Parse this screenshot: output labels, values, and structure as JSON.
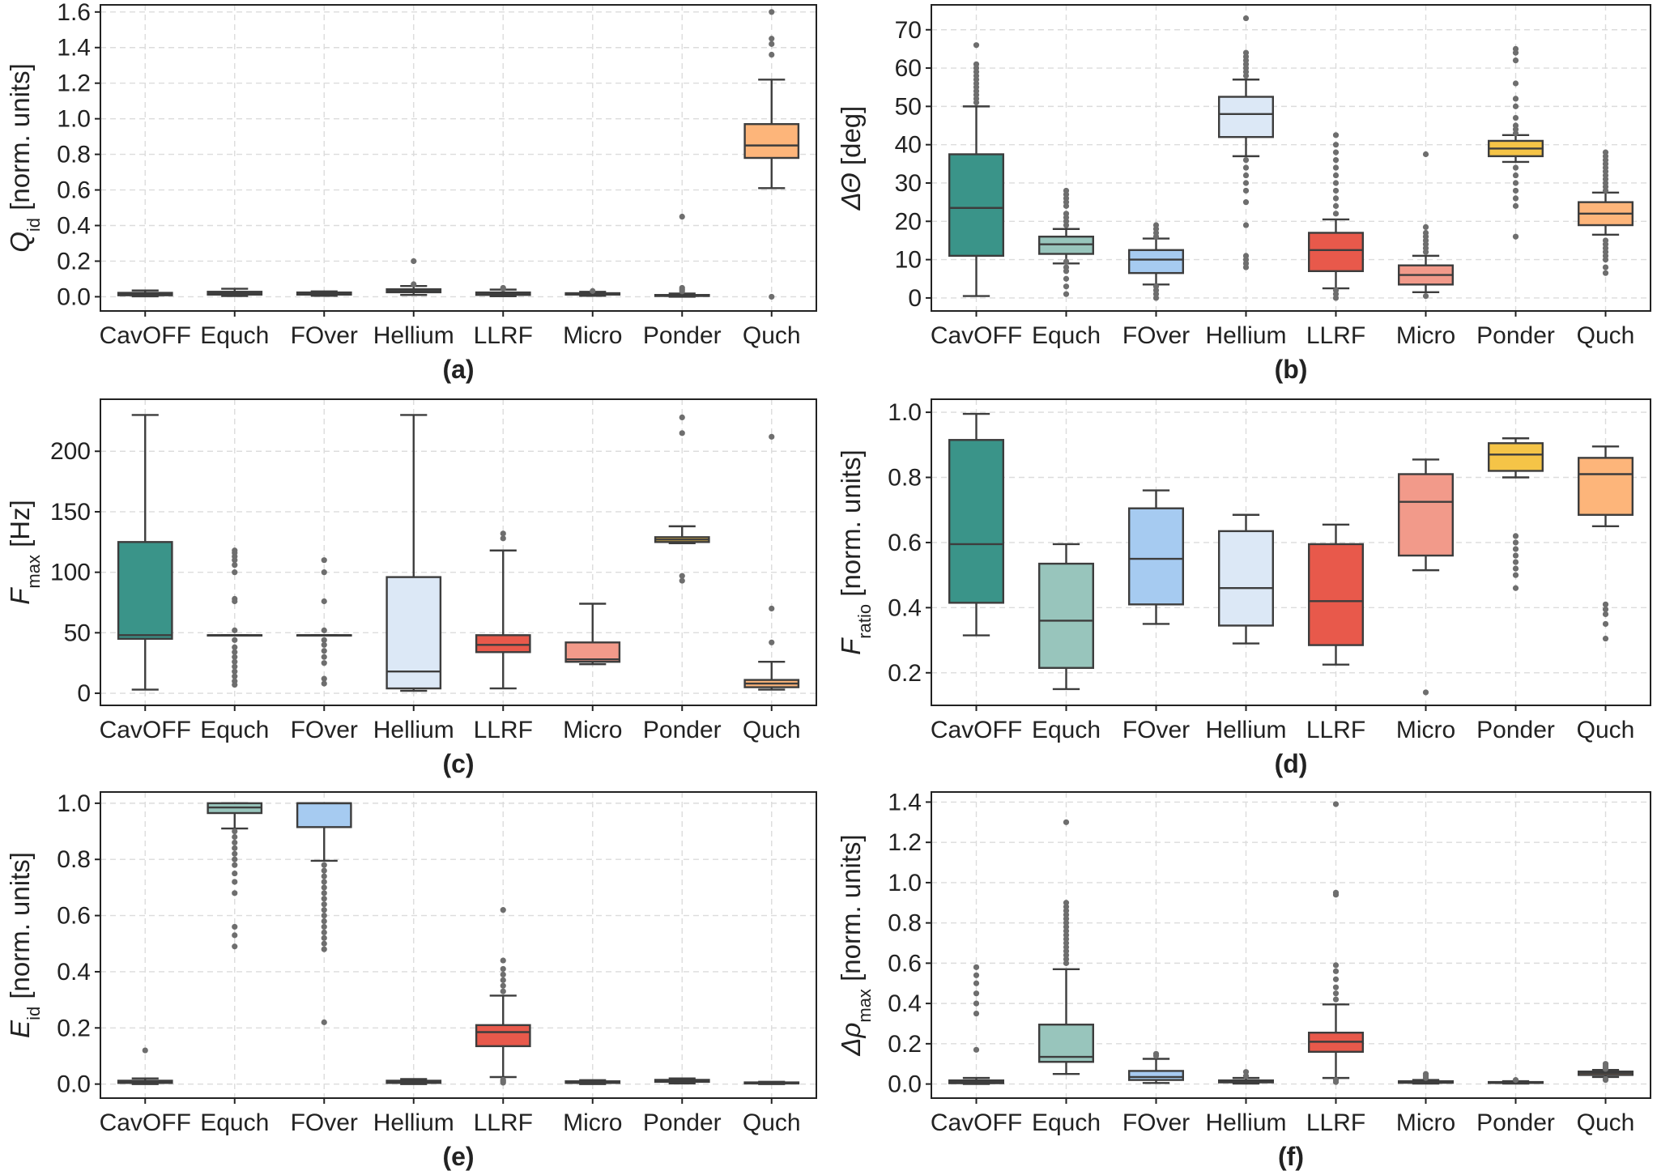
{
  "categories": [
    "CavOFF",
    "Equch",
    "FOver",
    "Hellium",
    "LLRF",
    "Micro",
    "Ponder",
    "Quch"
  ],
  "colors": [
    "#3a9489",
    "#98c5bc",
    "#a6cbf1",
    "#dce8f6",
    "#e8594b",
    "#f29a8a",
    "#f5c447",
    "#fdb57a"
  ],
  "chart_data": [
    {
      "type": "box",
      "panel_label": "(a)",
      "ylabel": {
        "main": "Q",
        "sub": "id",
        "suffix": " [norm. units]"
      },
      "ylim": [
        -0.08,
        1.64
      ],
      "yticks": [
        0.0,
        0.2,
        0.4,
        0.6,
        0.8,
        1.0,
        1.2,
        1.4,
        1.6
      ],
      "tick_decimals": 1,
      "grid": true,
      "boxes": [
        {
          "category": "CavOFF",
          "whislo": 0.002,
          "q1": 0.008,
          "median": 0.014,
          "q3": 0.022,
          "whishi": 0.035,
          "fliers": []
        },
        {
          "category": "Equch",
          "whislo": 0.004,
          "q1": 0.012,
          "median": 0.019,
          "q3": 0.028,
          "whishi": 0.045,
          "fliers": []
        },
        {
          "category": "FOver",
          "whislo": 0.005,
          "q1": 0.012,
          "median": 0.018,
          "q3": 0.024,
          "whishi": 0.03,
          "fliers": []
        },
        {
          "category": "Hellium",
          "whislo": 0.01,
          "q1": 0.025,
          "median": 0.032,
          "q3": 0.042,
          "whishi": 0.06,
          "fliers": [
            0.07,
            0.2
          ]
        },
        {
          "category": "LLRF",
          "whislo": 0.003,
          "q1": 0.01,
          "median": 0.016,
          "q3": 0.024,
          "whishi": 0.04,
          "fliers": [
            0.045,
            0.05
          ]
        },
        {
          "category": "Micro",
          "whislo": 0.005,
          "q1": 0.012,
          "median": 0.016,
          "q3": 0.02,
          "whishi": 0.028,
          "fliers": [
            0.032
          ]
        },
        {
          "category": "Ponder",
          "whislo": 0.0,
          "q1": 0.004,
          "median": 0.007,
          "q3": 0.01,
          "whishi": 0.018,
          "fliers": [
            0.03,
            0.04,
            0.05,
            0.45
          ]
        },
        {
          "category": "Quch",
          "whislo": 0.61,
          "q1": 0.78,
          "median": 0.85,
          "q3": 0.97,
          "whishi": 1.22,
          "fliers": [
            1.36,
            1.42,
            1.45,
            1.6,
            0.0
          ]
        }
      ]
    },
    {
      "type": "box",
      "panel_label": "(b)",
      "ylabel": {
        "main": "ΔΘ",
        "sub": "",
        "suffix": " [deg]"
      },
      "ylim": [
        -3.4,
        76.5
      ],
      "yticks": [
        0,
        10,
        20,
        30,
        40,
        50,
        60,
        70
      ],
      "tick_decimals": 0,
      "grid": true,
      "boxes": [
        {
          "category": "CavOFF",
          "whislo": 0.5,
          "q1": 11.0,
          "median": 23.5,
          "q3": 37.5,
          "whishi": 50.0,
          "fliers": [
            51,
            52,
            53,
            54,
            55,
            56,
            57,
            58,
            59,
            60,
            61,
            66
          ]
        },
        {
          "category": "Equch",
          "whislo": 9.0,
          "q1": 11.5,
          "median": 14.0,
          "q3": 16.0,
          "whishi": 18.0,
          "fliers": [
            1,
            3,
            5,
            7,
            8,
            9.5,
            19,
            20,
            21,
            22,
            24,
            25,
            26,
            27,
            28
          ]
        },
        {
          "category": "FOver",
          "whislo": 3.5,
          "q1": 6.5,
          "median": 10.0,
          "q3": 12.5,
          "whishi": 15.5,
          "fliers": [
            0,
            1,
            2,
            3,
            16,
            17,
            18,
            19
          ]
        },
        {
          "category": "Hellium",
          "whislo": 37.0,
          "q1": 42.0,
          "median": 48.0,
          "q3": 52.5,
          "whishi": 57.0,
          "fliers": [
            8,
            9,
            10,
            11,
            19,
            25,
            28,
            30,
            32,
            34,
            36,
            58,
            59,
            60,
            61,
            62,
            63,
            64,
            73
          ]
        },
        {
          "category": "LLRF",
          "whislo": 2.5,
          "q1": 7.0,
          "median": 12.5,
          "q3": 17.0,
          "whishi": 20.5,
          "fliers": [
            0,
            1,
            2,
            22,
            24,
            26,
            28,
            30,
            32,
            34,
            36,
            38,
            40,
            42.5
          ]
        },
        {
          "category": "Micro",
          "whislo": 1.5,
          "q1": 3.5,
          "median": 6.0,
          "q3": 8.5,
          "whishi": 11.0,
          "fliers": [
            0.5,
            12,
            13,
            14,
            15,
            16,
            17,
            18.5,
            37.5
          ]
        },
        {
          "category": "Ponder",
          "whislo": 35.5,
          "q1": 37.0,
          "median": 39.0,
          "q3": 41.0,
          "whishi": 42.5,
          "fliers": [
            16,
            24,
            26,
            28,
            30,
            32,
            34,
            43,
            44,
            45,
            47,
            50,
            52,
            56,
            62,
            64,
            65
          ]
        },
        {
          "category": "Quch",
          "whislo": 16.5,
          "q1": 19.0,
          "median": 22.0,
          "q3": 25.0,
          "whishi": 27.5,
          "fliers": [
            6.5,
            8,
            10,
            11,
            12,
            13,
            14,
            15,
            28,
            29,
            30,
            31,
            32,
            33,
            34,
            35,
            36,
            37,
            38
          ]
        }
      ]
    },
    {
      "type": "box",
      "panel_label": "(c)",
      "ylabel": {
        "main": "F",
        "sub": "max",
        "suffix": " [Hz]"
      },
      "ylim": [
        -10,
        243
      ],
      "yticks": [
        0,
        50,
        100,
        150,
        200
      ],
      "tick_decimals": 0,
      "grid": true,
      "boxes": [
        {
          "category": "CavOFF",
          "whislo": 3,
          "q1": 45,
          "median": 48,
          "q3": 125,
          "whishi": 230,
          "fliers": []
        },
        {
          "category": "Equch",
          "whislo": 48,
          "q1": 48,
          "median": 48,
          "q3": 48,
          "whishi": 48,
          "fliers": [
            7,
            10,
            14,
            18,
            22,
            26,
            30,
            34,
            38,
            44,
            52,
            76,
            78,
            100,
            106,
            110,
            113,
            116,
            118
          ]
        },
        {
          "category": "FOver",
          "whislo": 48,
          "q1": 48,
          "median": 48,
          "q3": 48,
          "whishi": 48,
          "fliers": [
            8,
            12,
            25,
            30,
            35,
            40,
            44,
            52,
            76,
            100,
            110
          ]
        },
        {
          "category": "Hellium",
          "whislo": 2,
          "q1": 4,
          "median": 18,
          "q3": 96,
          "whishi": 230,
          "fliers": []
        },
        {
          "category": "LLRF",
          "whislo": 4,
          "q1": 34,
          "median": 40,
          "q3": 48,
          "whishi": 118,
          "fliers": [
            128,
            132
          ]
        },
        {
          "category": "Micro",
          "whislo": 24,
          "q1": 26,
          "median": 28,
          "q3": 42,
          "whishi": 74,
          "fliers": []
        },
        {
          "category": "Ponder",
          "whislo": 124,
          "q1": 125,
          "median": 127,
          "q3": 129,
          "whishi": 138,
          "fliers": [
            93,
            97,
            215,
            228
          ]
        },
        {
          "category": "Quch",
          "whislo": 3,
          "q1": 5,
          "median": 8,
          "q3": 11,
          "whishi": 26,
          "fliers": [
            42,
            70,
            212
          ]
        }
      ]
    },
    {
      "type": "box",
      "panel_label": "(d)",
      "ylabel": {
        "main": "F",
        "sub": "ratio",
        "suffix": " [norm. units]"
      },
      "ylim": [
        0.1,
        1.04
      ],
      "yticks": [
        0.2,
        0.4,
        0.6,
        0.8,
        1.0
      ],
      "tick_decimals": 1,
      "grid": true,
      "boxes": [
        {
          "category": "CavOFF",
          "whislo": 0.315,
          "q1": 0.415,
          "median": 0.595,
          "q3": 0.915,
          "whishi": 0.995,
          "fliers": []
        },
        {
          "category": "Equch",
          "whislo": 0.15,
          "q1": 0.215,
          "median": 0.36,
          "q3": 0.535,
          "whishi": 0.595,
          "fliers": []
        },
        {
          "category": "FOver",
          "whislo": 0.35,
          "q1": 0.41,
          "median": 0.55,
          "q3": 0.705,
          "whishi": 0.76,
          "fliers": []
        },
        {
          "category": "Hellium",
          "whislo": 0.29,
          "q1": 0.345,
          "median": 0.46,
          "q3": 0.635,
          "whishi": 0.685,
          "fliers": []
        },
        {
          "category": "LLRF",
          "whislo": 0.225,
          "q1": 0.285,
          "median": 0.42,
          "q3": 0.595,
          "whishi": 0.655,
          "fliers": []
        },
        {
          "category": "Micro",
          "whislo": 0.515,
          "q1": 0.56,
          "median": 0.725,
          "q3": 0.81,
          "whishi": 0.855,
          "fliers": [
            0.14
          ]
        },
        {
          "category": "Ponder",
          "whislo": 0.8,
          "q1": 0.82,
          "median": 0.87,
          "q3": 0.905,
          "whishi": 0.92,
          "fliers": [
            0.46,
            0.5,
            0.52,
            0.54,
            0.56,
            0.58,
            0.6,
            0.62
          ]
        },
        {
          "category": "Quch",
          "whislo": 0.65,
          "q1": 0.685,
          "median": 0.81,
          "q3": 0.86,
          "whishi": 0.895,
          "fliers": [
            0.305,
            0.35,
            0.38,
            0.395,
            0.41
          ]
        }
      ]
    },
    {
      "type": "box",
      "panel_label": "(e)",
      "ylabel": {
        "main": "E",
        "sub": "id",
        "suffix": " [norm. units]"
      },
      "ylim": [
        -0.05,
        1.04
      ],
      "yticks": [
        0.0,
        0.2,
        0.4,
        0.6,
        0.8,
        1.0
      ],
      "tick_decimals": 1,
      "grid": true,
      "boxes": [
        {
          "category": "CavOFF",
          "whislo": 0.0,
          "q1": 0.004,
          "median": 0.008,
          "q3": 0.012,
          "whishi": 0.02,
          "fliers": [
            0.12
          ]
        },
        {
          "category": "Equch",
          "whislo": 0.91,
          "q1": 0.965,
          "median": 0.985,
          "q3": 1.0,
          "whishi": 1.0,
          "fliers": [
            0.49,
            0.53,
            0.56,
            0.68,
            0.72,
            0.75,
            0.78,
            0.8,
            0.82,
            0.84,
            0.86,
            0.88,
            0.9
          ]
        },
        {
          "category": "FOver",
          "whislo": 0.795,
          "q1": 0.915,
          "median": 1.0,
          "q3": 1.0,
          "whishi": 1.0,
          "fliers": [
            0.22,
            0.48,
            0.5,
            0.52,
            0.54,
            0.56,
            0.58,
            0.6,
            0.62,
            0.64,
            0.66,
            0.68,
            0.7,
            0.72,
            0.74,
            0.76,
            0.78
          ]
        },
        {
          "category": "Hellium",
          "whislo": 0.0,
          "q1": 0.004,
          "median": 0.008,
          "q3": 0.012,
          "whishi": 0.018,
          "fliers": []
        },
        {
          "category": "LLRF",
          "whislo": 0.025,
          "q1": 0.135,
          "median": 0.185,
          "q3": 0.21,
          "whishi": 0.315,
          "fliers": [
            0.005,
            0.01,
            0.015,
            0.33,
            0.35,
            0.37,
            0.39,
            0.41,
            0.44,
            0.62
          ]
        },
        {
          "category": "Micro",
          "whislo": 0.0,
          "q1": 0.004,
          "median": 0.007,
          "q3": 0.01,
          "whishi": 0.014,
          "fliers": []
        },
        {
          "category": "Ponder",
          "whislo": 0.002,
          "q1": 0.008,
          "median": 0.012,
          "q3": 0.015,
          "whishi": 0.02,
          "fliers": []
        },
        {
          "category": "Quch",
          "whislo": 0.0,
          "q1": 0.002,
          "median": 0.004,
          "q3": 0.006,
          "whishi": 0.008,
          "fliers": []
        }
      ]
    },
    {
      "type": "box",
      "panel_label": "(f)",
      "ylabel": {
        "main": "Δρ",
        "sub": "max",
        "suffix": " [norm. units]"
      },
      "ylim": [
        -0.07,
        1.45
      ],
      "yticks": [
        0.0,
        0.2,
        0.4,
        0.6,
        0.8,
        1.0,
        1.2,
        1.4
      ],
      "tick_decimals": 1,
      "grid": true,
      "boxes": [
        {
          "category": "CavOFF",
          "whislo": 0.0,
          "q1": 0.004,
          "median": 0.01,
          "q3": 0.018,
          "whishi": 0.03,
          "fliers": [
            0.17,
            0.35,
            0.4,
            0.45,
            0.5,
            0.54,
            0.58
          ]
        },
        {
          "category": "Equch",
          "whislo": 0.05,
          "q1": 0.11,
          "median": 0.135,
          "q3": 0.295,
          "whishi": 0.57,
          "fliers": [
            0.6,
            0.62,
            0.64,
            0.66,
            0.68,
            0.7,
            0.72,
            0.74,
            0.76,
            0.78,
            0.8,
            0.82,
            0.84,
            0.86,
            0.88,
            0.9,
            1.3
          ]
        },
        {
          "category": "FOver",
          "whislo": 0.005,
          "q1": 0.02,
          "median": 0.035,
          "q3": 0.065,
          "whishi": 0.125,
          "fliers": [
            0.14,
            0.15
          ]
        },
        {
          "category": "Hellium",
          "whislo": 0.002,
          "q1": 0.008,
          "median": 0.012,
          "q3": 0.018,
          "whishi": 0.03,
          "fliers": [
            0.04,
            0.06
          ]
        },
        {
          "category": "LLRF",
          "whislo": 0.03,
          "q1": 0.16,
          "median": 0.21,
          "q3": 0.255,
          "whishi": 0.395,
          "fliers": [
            0.01,
            0.02,
            0.42,
            0.45,
            0.48,
            0.52,
            0.56,
            0.59,
            0.94,
            0.95,
            1.39
          ]
        },
        {
          "category": "Micro",
          "whislo": 0.002,
          "q1": 0.006,
          "median": 0.01,
          "q3": 0.014,
          "whishi": 0.02,
          "fliers": [
            0.03,
            0.04,
            0.05
          ]
        },
        {
          "category": "Ponder",
          "whislo": 0.002,
          "q1": 0.005,
          "median": 0.008,
          "q3": 0.01,
          "whishi": 0.014,
          "fliers": [
            0.02
          ]
        },
        {
          "category": "Quch",
          "whislo": 0.035,
          "q1": 0.045,
          "median": 0.055,
          "q3": 0.062,
          "whishi": 0.07,
          "fliers": [
            0.02,
            0.025,
            0.075,
            0.08,
            0.085,
            0.09,
            0.095,
            0.1
          ]
        }
      ]
    }
  ]
}
